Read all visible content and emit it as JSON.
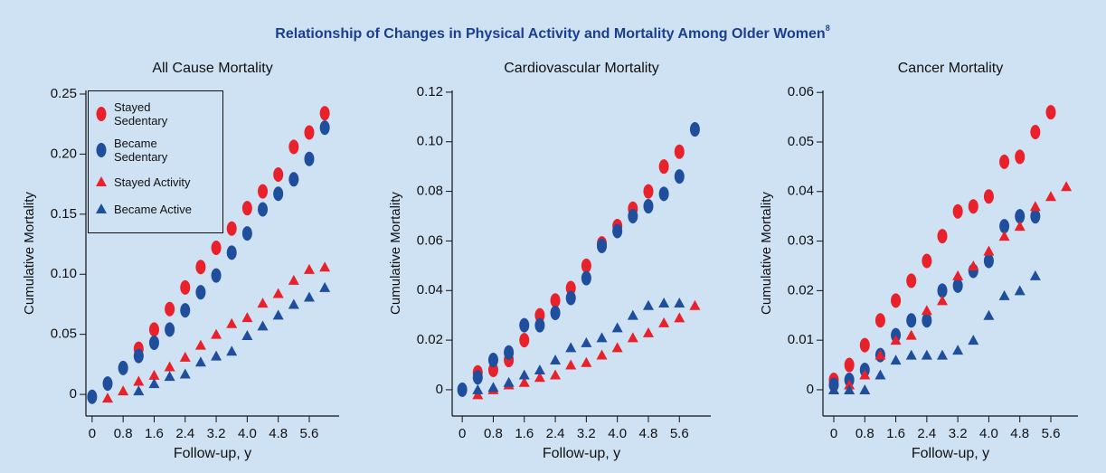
{
  "title": "Relationship of Changes in Physical Activity and Mortality Among Older Women",
  "title_note": "8",
  "chart_data": [
    {
      "type": "scatter",
      "title": "All Cause Mortality",
      "xlabel": "Follow-up, y",
      "ylabel": "Cumulative Mortality",
      "legend": "upper left",
      "x": [
        0,
        0.4,
        0.8,
        1.2,
        1.6,
        2.0,
        2.4,
        2.8,
        3.2,
        3.6,
        4.0,
        4.4,
        4.8,
        5.2,
        5.6,
        6.0
      ],
      "xlim": [
        -0.16,
        6.37
      ],
      "ylim": [
        -0.018,
        0.253
      ],
      "xticks": [
        0,
        0.8,
        1.6,
        2.4,
        3.2,
        {
          "value": 4.0,
          "label": "4.0"
        },
        4.8,
        5.6
      ],
      "yticks": [
        0,
        0.05,
        {
          "value": 0.1,
          "label": "0.10"
        },
        0.15,
        {
          "value": 0.2,
          "label": "0.20"
        },
        0.25
      ],
      "series": [
        {
          "name": "Stayed Sedentary",
          "color": "#e8212b",
          "marker": "ellipse",
          "values": [
            null,
            null,
            null,
            0.038,
            0.054,
            0.071,
            0.089,
            0.106,
            0.122,
            0.138,
            0.155,
            0.169,
            0.183,
            0.206,
            0.218,
            0.234
          ]
        },
        {
          "name": "Became Sedentary",
          "color": "#1f4e9c",
          "marker": "ellipse",
          "values": [
            -0.002,
            0.009,
            0.022,
            0.032,
            0.043,
            0.054,
            0.07,
            0.085,
            0.099,
            0.118,
            0.134,
            0.154,
            0.167,
            0.179,
            0.196,
            0.222
          ]
        },
        {
          "name": "Stayed Activity",
          "color": "#e8212b",
          "marker": "triangle",
          "values": [
            null,
            -0.003,
            0.003,
            0.011,
            0.016,
            0.023,
            0.031,
            0.041,
            0.05,
            0.059,
            0.064,
            0.076,
            0.084,
            0.095,
            0.104,
            0.106
          ]
        },
        {
          "name": "Became Active",
          "color": "#1f4e9c",
          "marker": "triangle",
          "values": [
            null,
            null,
            null,
            0.003,
            0.009,
            0.015,
            0.017,
            0.027,
            0.032,
            0.036,
            0.049,
            0.057,
            0.066,
            0.075,
            0.081,
            0.089
          ]
        }
      ]
    },
    {
      "type": "scatter",
      "title": "Cardiovascular Mortality",
      "xlabel": "Follow-up, y",
      "ylabel": "Cumulative Mortality",
      "x": [
        0,
        0.4,
        0.8,
        1.2,
        1.6,
        2.0,
        2.4,
        2.8,
        3.2,
        3.6,
        4.0,
        4.4,
        4.8,
        5.2,
        5.6,
        6.0
      ],
      "xlim": [
        -0.26,
        6.41
      ],
      "ylim": [
        -0.0106,
        0.1207
      ],
      "xticks": [
        0,
        0.8,
        1.6,
        2.4,
        3.2,
        {
          "value": 4.0,
          "label": "4.0"
        },
        4.8,
        5.6
      ],
      "yticks": [
        0,
        0.02,
        0.04,
        0.06,
        0.08,
        {
          "value": 0.1,
          "label": "0.10"
        },
        0.12
      ],
      "series": [
        {
          "color": "#e8212b",
          "marker": "ellipse",
          "values": [
            null,
            0.007,
            0.008,
            0.012,
            0.02,
            0.03,
            0.036,
            0.041,
            0.05,
            0.059,
            0.066,
            0.073,
            0.08,
            0.09,
            0.096,
            null
          ]
        },
        {
          "color": "#1f4e9c",
          "marker": "ellipse",
          "values": [
            0.0,
            0.005,
            0.012,
            0.015,
            0.026,
            0.026,
            0.031,
            0.037,
            0.045,
            0.058,
            0.064,
            0.07,
            0.074,
            0.079,
            0.086,
            0.105
          ]
        },
        {
          "color": "#e8212b",
          "marker": "triangle",
          "values": [
            null,
            -0.002,
            0.0,
            0.002,
            0.003,
            0.005,
            0.006,
            0.01,
            0.011,
            0.014,
            0.017,
            0.021,
            0.023,
            0.027,
            0.029,
            0.034
          ]
        },
        {
          "color": "#1f4e9c",
          "marker": "triangle",
          "values": [
            null,
            0.0,
            0.001,
            0.003,
            0.006,
            0.008,
            0.012,
            0.017,
            0.019,
            0.021,
            0.025,
            0.03,
            0.034,
            0.035,
            0.035,
            null
          ]
        }
      ]
    },
    {
      "type": "scatter",
      "title": "Cancer Mortality",
      "xlabel": "Follow-up, y",
      "ylabel": "Cumulative Mortality",
      "x": [
        0,
        0.4,
        0.8,
        1.2,
        1.6,
        2.0,
        2.4,
        2.8,
        3.2,
        3.6,
        4.0,
        4.4,
        4.8,
        5.2,
        5.6,
        6.0
      ],
      "xlim": [
        -0.28,
        6.3
      ],
      "ylim": [
        -0.0053,
        0.0604
      ],
      "xticks": [
        0,
        0.8,
        1.6,
        2.4,
        3.2,
        {
          "value": 4.0,
          "label": "4.0"
        },
        4.8,
        5.6
      ],
      "yticks": [
        0,
        0.01,
        0.02,
        0.03,
        0.04,
        0.05,
        0.06
      ],
      "series": [
        {
          "color": "#e8212b",
          "marker": "ellipse",
          "values": [
            0.002,
            0.005,
            0.009,
            0.014,
            0.018,
            0.022,
            0.026,
            0.031,
            0.036,
            0.037,
            0.039,
            0.046,
            0.047,
            0.052,
            0.056,
            null
          ]
        },
        {
          "color": "#1f4e9c",
          "marker": "ellipse",
          "values": [
            0.001,
            0.002,
            0.004,
            0.007,
            0.011,
            0.014,
            0.014,
            0.02,
            0.021,
            0.024,
            0.026,
            0.033,
            0.035,
            0.035,
            null,
            null
          ]
        },
        {
          "color": "#e8212b",
          "marker": "triangle",
          "values": [
            0.0,
            0.001,
            0.003,
            0.007,
            0.01,
            0.011,
            0.016,
            0.018,
            0.023,
            0.025,
            0.028,
            0.031,
            0.033,
            0.037,
            0.039,
            0.041
          ]
        },
        {
          "color": "#1f4e9c",
          "marker": "triangle",
          "values": [
            0.0,
            0.0,
            0.0,
            0.003,
            0.006,
            0.007,
            0.007,
            0.007,
            0.008,
            0.01,
            0.015,
            0.019,
            0.02,
            0.023,
            null,
            null
          ]
        }
      ]
    }
  ]
}
